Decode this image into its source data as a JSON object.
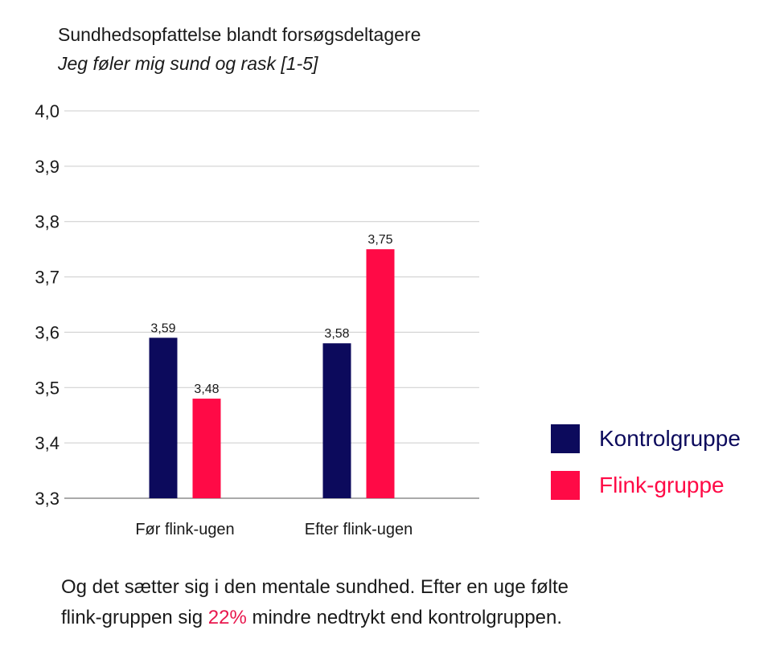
{
  "chart_data": {
    "type": "bar",
    "title": "Sundhedsopfattelse blandt forsøgsdeltagere",
    "subtitle": "Jeg føler mig sund og rask [1-5]",
    "categories": [
      "Før flink-ugen",
      "Efter flink-ugen"
    ],
    "series": [
      {
        "name": "Kontrolgruppe",
        "values": [
          3.59,
          3.58
        ],
        "labels": [
          "3,59",
          "3,58"
        ],
        "color": "#0c0a5c"
      },
      {
        "name": "Flink-gruppe",
        "values": [
          3.48,
          3.75
        ],
        "labels": [
          "3,48",
          "3,75"
        ],
        "color": "#ff0a46"
      }
    ],
    "ylim": [
      3.3,
      4.0
    ],
    "yticks": [
      {
        "value": 3.3,
        "label": "3,3"
      },
      {
        "value": 3.4,
        "label": "3,4"
      },
      {
        "value": 3.5,
        "label": "3,5"
      },
      {
        "value": 3.6,
        "label": "3,6"
      },
      {
        "value": 3.7,
        "label": "3,7"
      },
      {
        "value": 3.8,
        "label": "3,8"
      },
      {
        "value": 3.9,
        "label": "3,9"
      },
      {
        "value": 4.0,
        "label": "4,0"
      }
    ],
    "grid": true,
    "legend_position": "right"
  },
  "caption": {
    "line1": "Og det sætter sig i den mentale sundhed. Efter en uge følte",
    "line2_before": "flink-gruppen sig ",
    "line2_highlight": "22%",
    "line2_after": " mindre nedtrykt end kontrolgruppen.",
    "highlight_color": "#e8174d"
  }
}
